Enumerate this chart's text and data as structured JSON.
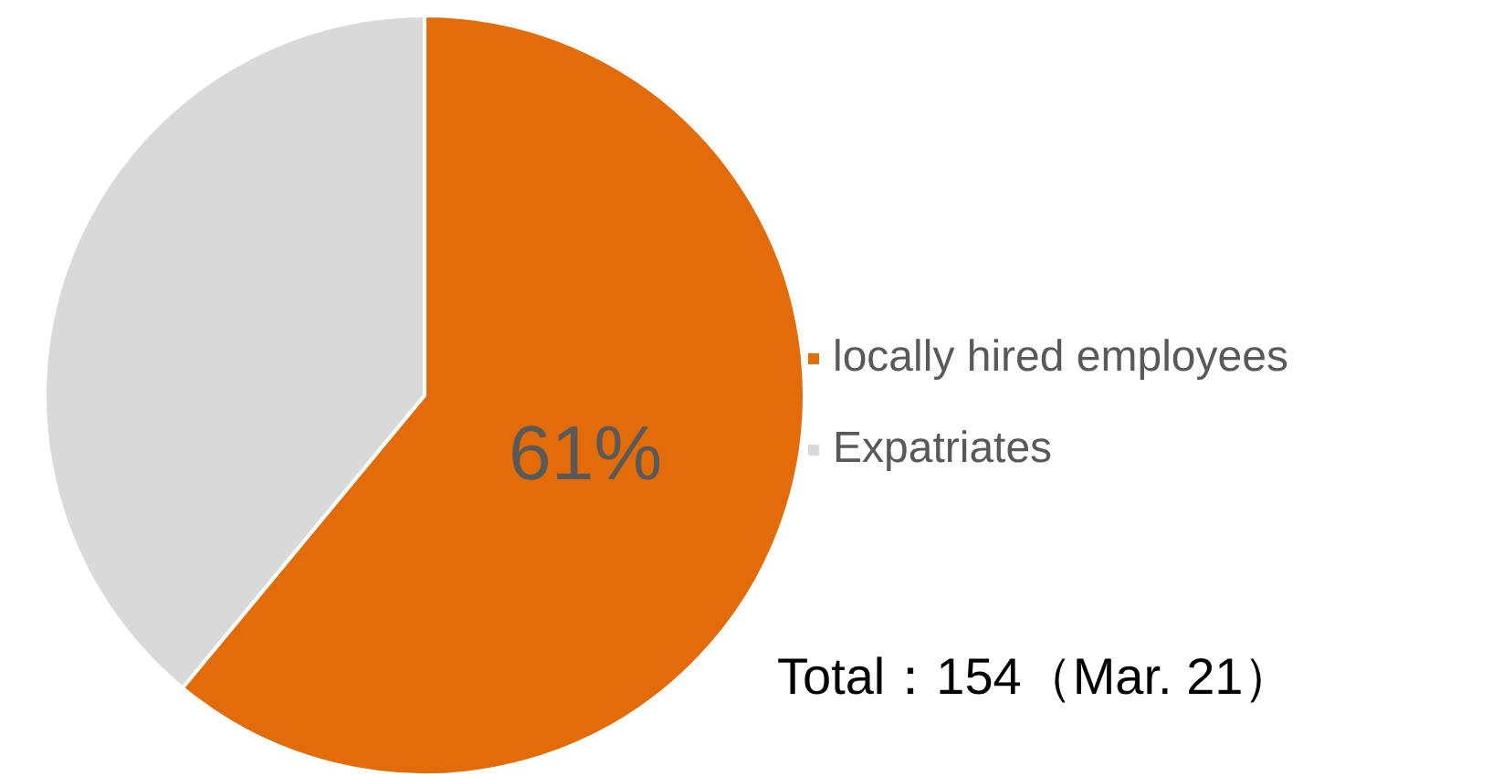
{
  "chart_data": {
    "type": "pie",
    "categories": [
      "locally hired employees",
      "Expatriates"
    ],
    "values": [
      61,
      39
    ],
    "colors": [
      "#e36c0a",
      "#d9d9d9"
    ],
    "value_labels": [
      "61%",
      null
    ],
    "legend": "right",
    "annotations": [
      "Total：154（Mar. 21）"
    ]
  }
}
